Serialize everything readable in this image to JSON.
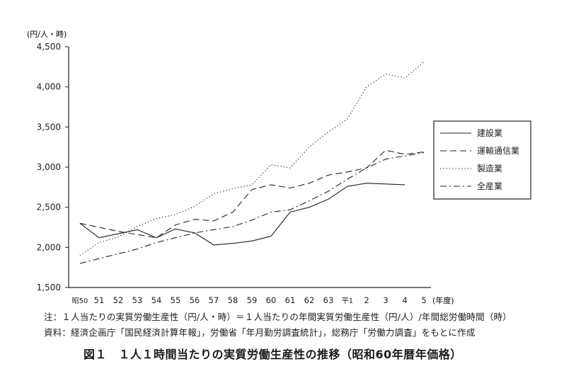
{
  "chart_data": {
    "type": "line",
    "yunit": "(円/人・時)",
    "xunit": "(年度)",
    "ylim": [
      1500,
      4500
    ],
    "yticks": [
      "1,500",
      "2,000",
      "2,500",
      "3,000",
      "3,500",
      "4,000",
      "4,500"
    ],
    "ytick_values": [
      1500,
      2000,
      2500,
      3000,
      3500,
      4000,
      4500
    ],
    "categories": [
      "昭50",
      "51",
      "52",
      "53",
      "54",
      "55",
      "56",
      "57",
      "58",
      "59",
      "60",
      "61",
      "62",
      "63",
      "平1",
      "2",
      "3",
      "4",
      "5"
    ],
    "grid": false,
    "legend_position": "right",
    "series": [
      {
        "name": "建設業",
        "style": "solid",
        "values": [
          2300,
          2120,
          2170,
          2220,
          2120,
          2230,
          2180,
          2030,
          2050,
          2080,
          2140,
          2440,
          2500,
          2600,
          2760,
          2800,
          2790,
          2780,
          null
        ]
      },
      {
        "name": "運輸通信業",
        "style": "dashed",
        "values": [
          2300,
          2250,
          2200,
          2160,
          2120,
          2280,
          2350,
          2330,
          2440,
          2720,
          2780,
          2740,
          2800,
          2900,
          2940,
          2990,
          3210,
          3160,
          3190
        ]
      },
      {
        "name": "製造業",
        "style": "dotted",
        "values": [
          1900,
          2060,
          2130,
          2260,
          2360,
          2410,
          2510,
          2670,
          2730,
          2780,
          3030,
          2990,
          3250,
          3440,
          3600,
          4000,
          4160,
          4110,
          4310
        ]
      },
      {
        "name": "全産業",
        "style": "dashdot",
        "values": [
          1800,
          1860,
          1920,
          1980,
          2060,
          2120,
          2180,
          2220,
          2260,
          2340,
          2440,
          2470,
          2580,
          2700,
          2850,
          2990,
          3100,
          3140,
          3180
        ]
      }
    ]
  },
  "notes": {
    "note1": "注：１人当たりの実質労働生産性（円/人・時）＝１人当たりの年間実質労働生産性（円/人）/年間総労働時間（時）",
    "note2": "資料：経済企画庁「国民経済計算年報」，労働省「年月勤労調査統計」，総務庁「労働力調査」をもとに作成"
  },
  "caption": "図１　１人１時間当たりの実質労働生産性の推移（昭和60年暦年価格）"
}
